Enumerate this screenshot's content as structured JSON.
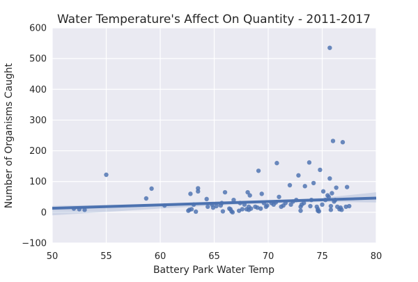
{
  "chart_data": {
    "type": "scatter",
    "title": "Water Temperature's Affect On Quantity - 2011-2017",
    "xlabel": "Battery Park Water Temp",
    "ylabel": "Number of Organisms Caught",
    "xlim": [
      50,
      80
    ],
    "ylim": [
      -100,
      600
    ],
    "xticks": [
      "50",
      "55",
      "60",
      "65",
      "70",
      "75",
      "80"
    ],
    "yticks": [
      "−100",
      "0",
      "100",
      "200",
      "300",
      "400",
      "500",
      "600"
    ],
    "grid": true,
    "regression": {
      "line": [
        [
          50,
          13
        ],
        [
          80,
          46
        ]
      ],
      "ci_upper": [
        [
          50,
          21
        ],
        [
          60,
          27
        ],
        [
          65,
          32
        ],
        [
          70,
          38
        ],
        [
          75,
          47
        ],
        [
          80,
          65
        ]
      ],
      "ci_lower": [
        [
          50,
          -10
        ],
        [
          60,
          12
        ],
        [
          65,
          22
        ],
        [
          70,
          29
        ],
        [
          75,
          34
        ],
        [
          80,
          32
        ]
      ]
    },
    "colors": {
      "background": "#EAEAF2",
      "points": "#4C72B0",
      "line": "#4C72B0",
      "grid": "#FFFFFF"
    },
    "points": [
      [
        52.0,
        12
      ],
      [
        52.5,
        10
      ],
      [
        53.0,
        8
      ],
      [
        55.0,
        122
      ],
      [
        58.7,
        45
      ],
      [
        59.2,
        77
      ],
      [
        60.4,
        22
      ],
      [
        62.6,
        5
      ],
      [
        62.7,
        8
      ],
      [
        62.8,
        60
      ],
      [
        62.9,
        10
      ],
      [
        63.1,
        25
      ],
      [
        63.3,
        2
      ],
      [
        63.5,
        78
      ],
      [
        63.5,
        68
      ],
      [
        64.3,
        43
      ],
      [
        64.4,
        18
      ],
      [
        64.8,
        25
      ],
      [
        64.9,
        15
      ],
      [
        65.2,
        20
      ],
      [
        65.6,
        22
      ],
      [
        65.7,
        30
      ],
      [
        65.8,
        3
      ],
      [
        66.0,
        65
      ],
      [
        66.4,
        12
      ],
      [
        66.5,
        10
      ],
      [
        66.6,
        3
      ],
      [
        66.7,
        0
      ],
      [
        66.8,
        40
      ],
      [
        67.3,
        5
      ],
      [
        67.4,
        30
      ],
      [
        67.6,
        10
      ],
      [
        67.8,
        25
      ],
      [
        68.0,
        10
      ],
      [
        68.1,
        65
      ],
      [
        68.2,
        8
      ],
      [
        68.2,
        18
      ],
      [
        68.3,
        55
      ],
      [
        68.4,
        12
      ],
      [
        68.8,
        18
      ],
      [
        69.0,
        15
      ],
      [
        69.1,
        135
      ],
      [
        69.3,
        12
      ],
      [
        69.4,
        60
      ],
      [
        69.6,
        30
      ],
      [
        69.8,
        18
      ],
      [
        69.9,
        22
      ],
      [
        70.3,
        30
      ],
      [
        70.5,
        25
      ],
      [
        70.7,
        32
      ],
      [
        70.8,
        160
      ],
      [
        71.0,
        50
      ],
      [
        71.2,
        18
      ],
      [
        71.4,
        22
      ],
      [
        71.6,
        30
      ],
      [
        72.0,
        88
      ],
      [
        72.1,
        25
      ],
      [
        72.3,
        35
      ],
      [
        72.6,
        40
      ],
      [
        72.8,
        120
      ],
      [
        73.0,
        5
      ],
      [
        73.0,
        18
      ],
      [
        73.1,
        25
      ],
      [
        73.3,
        30
      ],
      [
        73.4,
        85
      ],
      [
        73.8,
        162
      ],
      [
        73.9,
        20
      ],
      [
        74.0,
        40
      ],
      [
        74.2,
        95
      ],
      [
        74.5,
        18
      ],
      [
        74.6,
        10
      ],
      [
        74.6,
        5
      ],
      [
        74.7,
        3
      ],
      [
        74.8,
        138
      ],
      [
        75.0,
        25
      ],
      [
        75.1,
        68
      ],
      [
        75.3,
        40
      ],
      [
        75.5,
        55
      ],
      [
        75.6,
        50
      ],
      [
        75.7,
        110
      ],
      [
        75.7,
        535
      ],
      [
        75.8,
        20
      ],
      [
        75.8,
        8
      ],
      [
        75.9,
        62
      ],
      [
        76.0,
        232
      ],
      [
        76.1,
        35
      ],
      [
        76.2,
        40
      ],
      [
        76.3,
        80
      ],
      [
        76.4,
        18
      ],
      [
        76.6,
        10
      ],
      [
        76.7,
        15
      ],
      [
        76.8,
        8
      ],
      [
        76.9,
        228
      ],
      [
        77.2,
        18
      ],
      [
        77.3,
        82
      ],
      [
        77.5,
        20
      ]
    ]
  }
}
